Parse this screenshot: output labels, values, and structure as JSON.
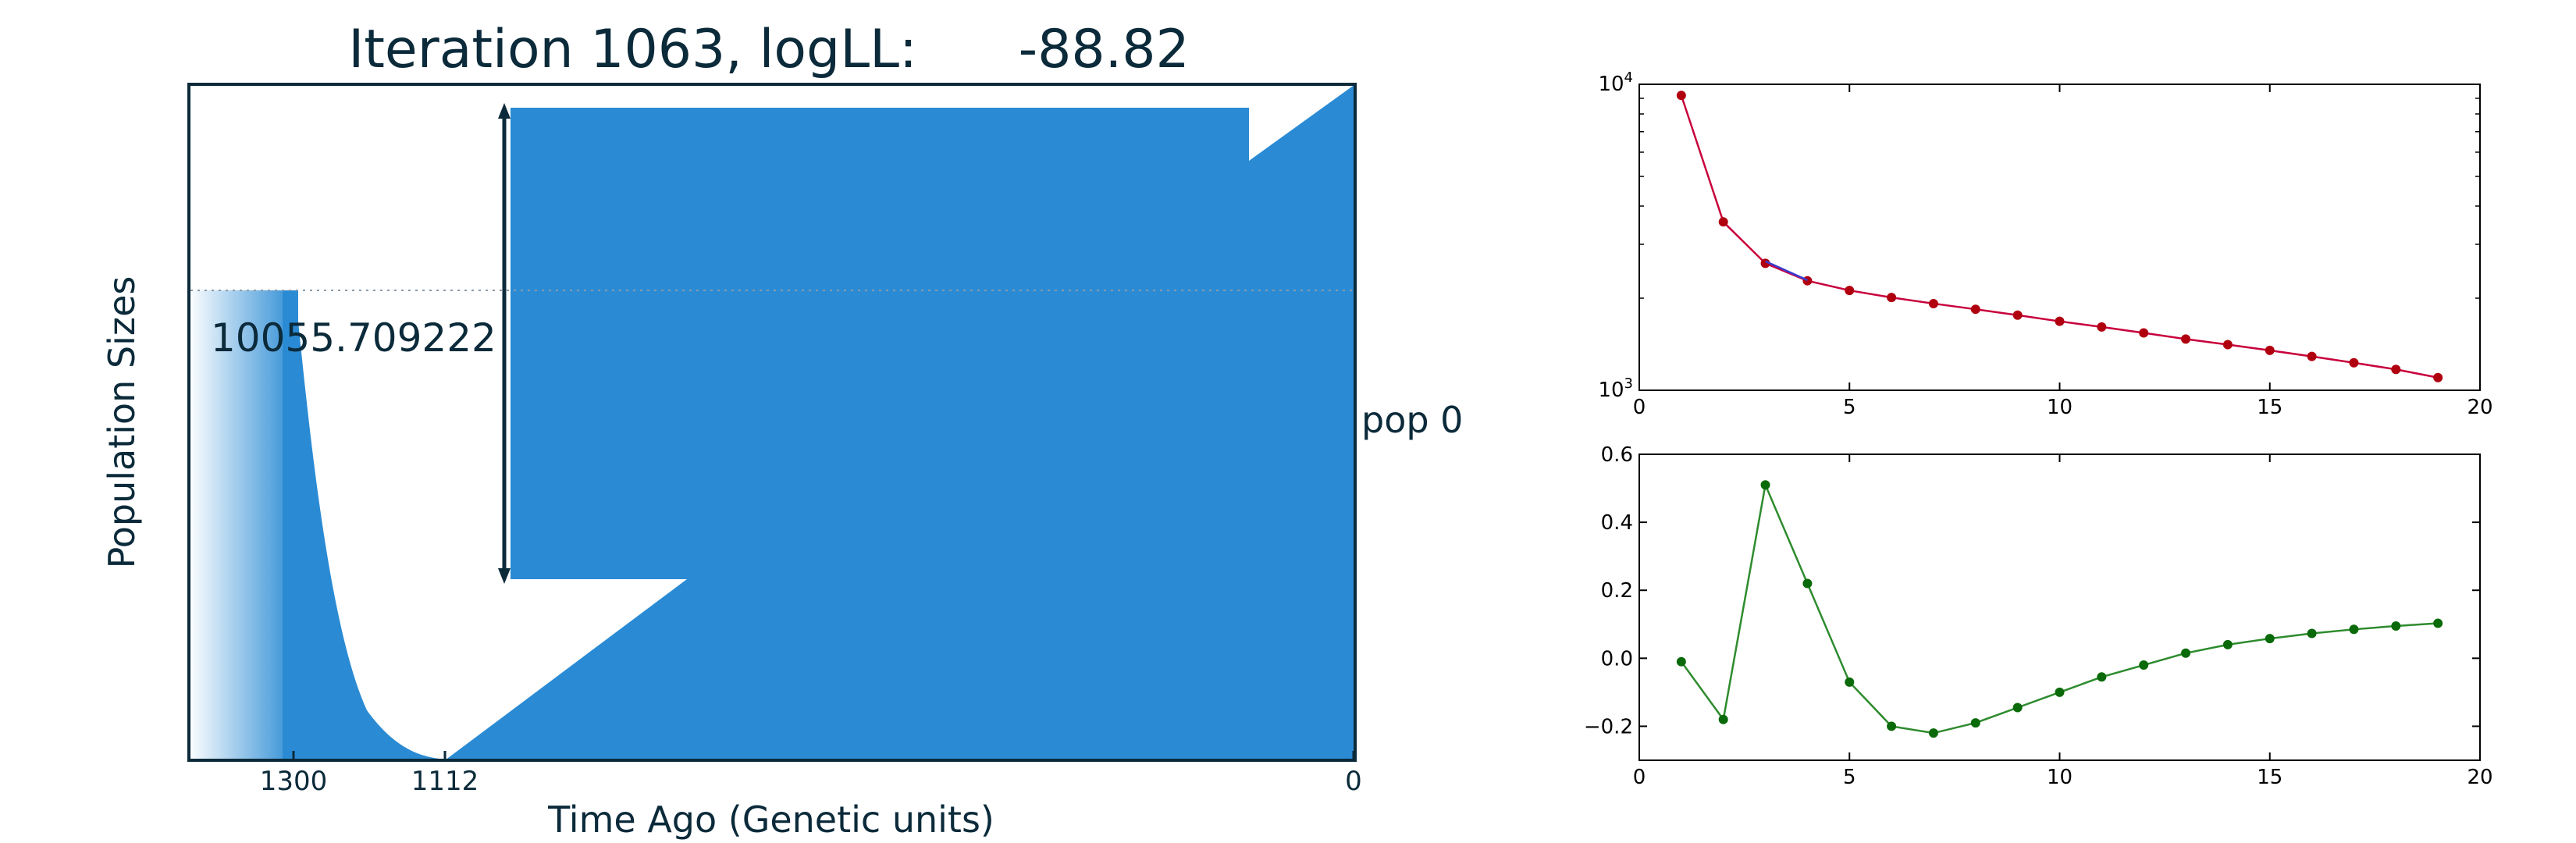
{
  "colors": {
    "fill": "#2a8bd4",
    "text": "#0b2a3a",
    "red_line": "#c8003c",
    "red_marker": "#b0000f",
    "blue_line": "#3b3bd0",
    "green_line": "#2e8b2e",
    "green_marker": "#0a6a0a"
  },
  "chart_data": [
    {
      "type": "area",
      "title": "Iteration 1063, logLL:      -88.82",
      "xlabel": "Time Ago (Genetic units)",
      "ylabel": "Population Sizes",
      "x_tick_labels": [
        "1300",
        "1112",
        "0"
      ],
      "annotation": "10055.709222",
      "population_label": "pop 0",
      "time_axis": "reversed (0 at right)",
      "segments": [
        {
          "from": 1300,
          "to": 1112,
          "shape": "exponential decline",
          "note": "size 10055.709222 at 1300"
        },
        {
          "from": 1112,
          "to": 0,
          "shape": "growth to present"
        }
      ]
    },
    {
      "type": "line",
      "yscale": "log",
      "xlim": [
        0,
        20
      ],
      "ylim": [
        1000,
        10000
      ],
      "x_ticks": [
        "0",
        "5",
        "10",
        "15",
        "20"
      ],
      "y_ticks": [
        {
          "base": "10",
          "exp": "4"
        },
        {
          "base": "10",
          "exp": "3"
        }
      ],
      "x": [
        1,
        2,
        3,
        4,
        5,
        6,
        7,
        8,
        9,
        10,
        11,
        12,
        13,
        14,
        15,
        16,
        17,
        18,
        19
      ],
      "series": [
        {
          "values": [
            9200,
            3550,
            2600,
            2280,
            2120,
            2010,
            1920,
            1840,
            1760,
            1680,
            1610,
            1540,
            1470,
            1410,
            1350,
            1290,
            1230,
            1170,
            1100
          ]
        },
        {
          "values": [
            null,
            null,
            2640,
            2290,
            null,
            null,
            null,
            null,
            null,
            null,
            null,
            null,
            null,
            null,
            null,
            null,
            null,
            null,
            null
          ]
        }
      ]
    },
    {
      "type": "line",
      "xlim": [
        0,
        20
      ],
      "ylim": [
        -0.3,
        0.6
      ],
      "x_ticks": [
        "0",
        "5",
        "10",
        "15",
        "20"
      ],
      "y_ticks": [
        "0.6",
        "0.4",
        "0.2",
        "0.0",
        "−0.2"
      ],
      "x": [
        1,
        2,
        3,
        4,
        5,
        6,
        7,
        8,
        9,
        10,
        11,
        12,
        13,
        14,
        15,
        16,
        17,
        18,
        19
      ],
      "series": [
        {
          "values": [
            -0.01,
            -0.18,
            0.51,
            0.22,
            -0.07,
            -0.2,
            -0.22,
            -0.19,
            -0.145,
            -0.1,
            -0.055,
            -0.02,
            0.015,
            0.04,
            0.058,
            0.073,
            0.085,
            0.095,
            0.103
          ]
        }
      ]
    }
  ]
}
